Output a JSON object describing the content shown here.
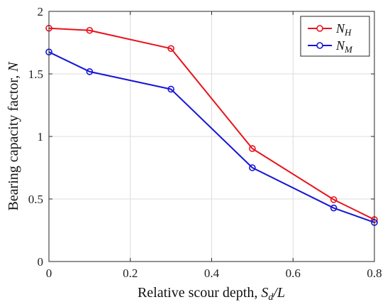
{
  "chart_data": {
    "type": "line",
    "xlabel": "Relative scour depth, S_d/L",
    "xlabel_parts": {
      "prefix": "Relative scour depth, ",
      "var": "S",
      "sub": "d",
      "suffix": "/L"
    },
    "ylabel": "Bearing capacity factor, N",
    "ylabel_parts": {
      "prefix": "Bearing capacity factor, ",
      "var": "N"
    },
    "xlim": [
      0,
      0.8
    ],
    "ylim": [
      0,
      2
    ],
    "xticks": [
      0,
      0.2,
      0.4,
      0.6,
      0.8
    ],
    "xtick_labels": [
      "0",
      "0.2",
      "0.4",
      "0.6",
      "0.8"
    ],
    "yticks": [
      0,
      0.5,
      1,
      1.5,
      2
    ],
    "ytick_labels": [
      "0",
      "0.5",
      "1",
      "1.5",
      "2"
    ],
    "grid": true,
    "legend_position": "top-right",
    "series": [
      {
        "name": "N_H",
        "name_main": "N",
        "name_sub": "H",
        "color": "#e8121d",
        "x": [
          0,
          0.1,
          0.3,
          0.5,
          0.7,
          0.8
        ],
        "y": [
          1.865,
          1.848,
          1.703,
          0.903,
          0.495,
          0.335
        ]
      },
      {
        "name": "N_M",
        "name_main": "N",
        "name_sub": "M",
        "color": "#1515d8",
        "x": [
          0,
          0.1,
          0.3,
          0.5,
          0.7,
          0.8
        ],
        "y": [
          1.675,
          1.518,
          1.378,
          0.75,
          0.428,
          0.312
        ]
      }
    ]
  }
}
